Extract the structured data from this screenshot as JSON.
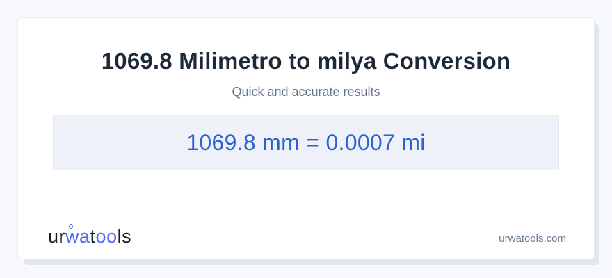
{
  "page": {
    "title": "1069.8 Milimetro to milya Conversion",
    "subtitle": "Quick and accurate results",
    "result_text": "1069.8 mm = 0.0007 mi",
    "conversion": {
      "from_value": "1069.8",
      "from_unit": "mm",
      "to_value": "0.0007",
      "to_unit": "mi"
    }
  },
  "logo": {
    "parts": [
      {
        "text": "ur",
        "color": "dark"
      },
      {
        "text": "wa",
        "color": "blue"
      },
      {
        "text": "t",
        "color": "dark"
      },
      {
        "text": "oo",
        "color": "blue"
      },
      {
        "text": "ls",
        "color": "dark"
      }
    ]
  },
  "footer": {
    "site_url": "urwatools.com"
  },
  "colors": {
    "page_background": "#f7f9fd",
    "card_background": "#ffffff",
    "card_border": "#e8ecf2",
    "title_text": "#1e2936",
    "subtitle_text": "#64748b",
    "result_box_background": "#eef1f7",
    "result_box_border": "#e0e8f0",
    "result_text": "#2c60d5",
    "logo_dark": "#18181d",
    "logo_blue": "#5468f5",
    "site_url_text": "#6b7a93"
  }
}
